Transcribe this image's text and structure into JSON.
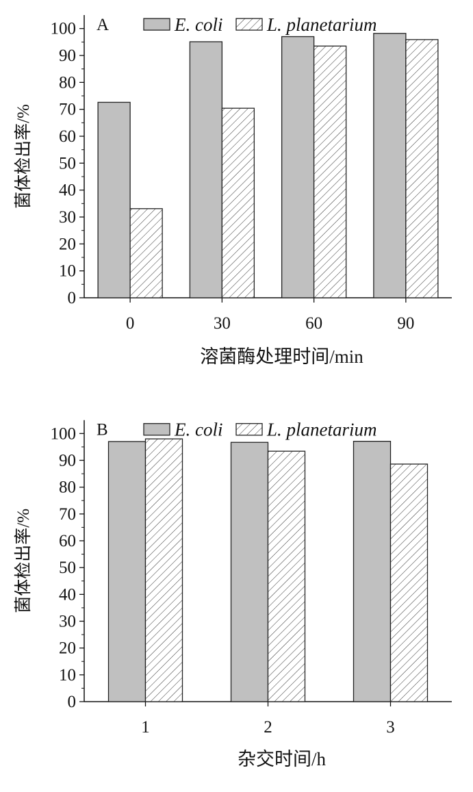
{
  "chart_data": [
    {
      "type": "bar",
      "panel_label": "A",
      "categories": [
        "0",
        "30",
        "60",
        "90"
      ],
      "xlabel": "溶菌酶处理时间/min",
      "ylabel": "菌体检出率/%",
      "ylim": [
        0,
        105
      ],
      "yticks": [
        "0",
        "10",
        "20",
        "30",
        "40",
        "50",
        "60",
        "70",
        "80",
        "90",
        "100"
      ],
      "legend_position": "top",
      "series": [
        {
          "name": "E. coli",
          "style": "solid",
          "color": "#c0c0c0",
          "values": [
            72.6,
            95.1,
            97.0,
            98.2
          ]
        },
        {
          "name": "L. planetarium",
          "style": "hatched",
          "color": "#ffffff",
          "values": [
            33.1,
            70.4,
            93.5,
            95.9
          ]
        }
      ]
    },
    {
      "type": "bar",
      "panel_label": "B",
      "categories": [
        "1",
        "2",
        "3"
      ],
      "xlabel": "杂交时间/h",
      "ylabel": "菌体检出率/%",
      "ylim": [
        0,
        105
      ],
      "yticks": [
        "0",
        "10",
        "20",
        "30",
        "40",
        "50",
        "60",
        "70",
        "80",
        "90",
        "100"
      ],
      "legend_position": "top",
      "series": [
        {
          "name": "E. coli",
          "style": "solid",
          "color": "#c0c0c0",
          "values": [
            97.0,
            96.7,
            97.1
          ]
        },
        {
          "name": "L. planetarium",
          "style": "hatched",
          "color": "#ffffff",
          "values": [
            98.0,
            93.4,
            88.6
          ]
        }
      ]
    }
  ]
}
